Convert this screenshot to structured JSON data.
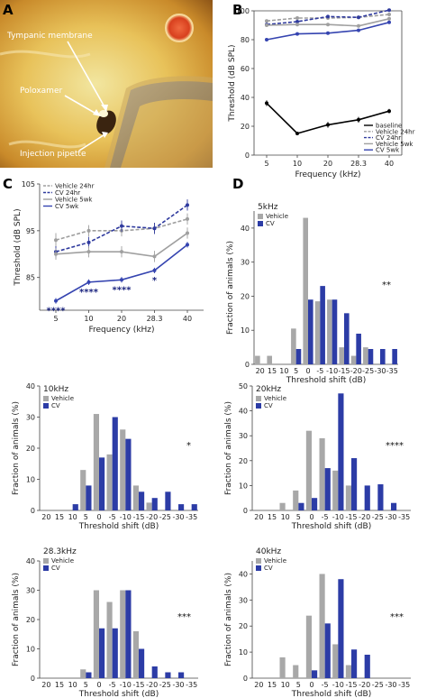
{
  "colors": {
    "baseline": "#000000",
    "vehicle24": "#9e9e9e",
    "cv24": "#2f3a9e",
    "vehicle5": "#a0a0a0",
    "cv5": "#3544b0",
    "vehicle_bar": "#a8a8a8",
    "cv_bar": "#2c3ca6"
  },
  "panel_a": {
    "letter": "A",
    "labels": [
      "Tympanic membrane",
      "Poloxamer",
      "Injection pipette"
    ]
  },
  "chart_data": [
    {
      "id": "B",
      "type": "line",
      "panel_letter": "B",
      "xlabel": "Frequency (kHz)",
      "ylabel": "Threshold (dB SPL)",
      "categories": [
        "5",
        "10",
        "20",
        "28.3",
        "40"
      ],
      "ylim": [
        0,
        100
      ],
      "yticks": [
        0,
        20,
        40,
        60,
        80,
        100
      ],
      "legend_position": "bottom-right",
      "series": [
        {
          "name": "baseline",
          "style": "solid",
          "color": "#000000",
          "values": [
            36,
            15,
            21,
            24.5,
            30.5
          ],
          "err": [
            2,
            1,
            2,
            2,
            1.5
          ]
        },
        {
          "name": "Vehicle 24hr",
          "style": "dashed",
          "color": "#9e9e9e",
          "values": [
            93,
            95,
            95,
            95.5,
            97.5
          ],
          "err": [
            1,
            1,
            1,
            1,
            1
          ]
        },
        {
          "name": "CV 24hr",
          "style": "dashed",
          "color": "#2f3a9e",
          "values": [
            90.5,
            92.5,
            96,
            95.5,
            100.5
          ],
          "err": [
            1,
            1,
            1,
            1,
            1
          ]
        },
        {
          "name": "Vehicle 5wk",
          "style": "solid",
          "color": "#a0a0a0",
          "values": [
            90,
            90.5,
            90.5,
            89.5,
            94.5
          ],
          "err": [
            1,
            1,
            1,
            1,
            1
          ]
        },
        {
          "name": "CV 5wk",
          "style": "solid",
          "color": "#3544b0",
          "values": [
            80,
            84,
            84.5,
            86.5,
            92
          ],
          "err": [
            0.5,
            0.5,
            0.5,
            0.5,
            0.5
          ]
        }
      ]
    },
    {
      "id": "C",
      "type": "line",
      "panel_letter": "C",
      "xlabel": "Frequency (kHz)",
      "ylabel": "Threshold (dB SPL)",
      "categories": [
        "5",
        "10",
        "20",
        "28.3",
        "40"
      ],
      "ylim": [
        78,
        105
      ],
      "yticks": [
        85,
        95,
        105
      ],
      "legend_position": "top-left",
      "significance": [
        "****",
        "****",
        "****",
        "*",
        ""
      ],
      "series": [
        {
          "name": "Vehicle 24hr",
          "style": "dashed",
          "color": "#9e9e9e",
          "values": [
            93,
            95,
            95,
            95.5,
            97.5
          ],
          "err": [
            1.5,
            1.2,
            1.2,
            1.2,
            1.2
          ]
        },
        {
          "name": "CV 24hr",
          "style": "dashed",
          "color": "#2f3a9e",
          "values": [
            90.5,
            92.5,
            96,
            95.5,
            100.5
          ],
          "err": [
            1.2,
            1.2,
            1.2,
            1.2,
            1.2
          ]
        },
        {
          "name": "Vehicle 5wk",
          "style": "solid",
          "color": "#a0a0a0",
          "values": [
            90,
            90.5,
            90.5,
            89.5,
            94.5
          ],
          "err": [
            1.2,
            1.2,
            1.2,
            1.2,
            1.2
          ]
        },
        {
          "name": "CV 5wk",
          "style": "solid",
          "color": "#3544b0",
          "values": [
            80,
            84,
            84.5,
            86.5,
            92
          ],
          "err": [
            0.6,
            0.6,
            0.6,
            0.6,
            0.6
          ]
        }
      ]
    },
    {
      "id": "D5",
      "type": "bar",
      "panel_letter": "D",
      "title": "5kHz",
      "xlabel": "Threshold shift (dB)",
      "ylabel": "Fraction of animals (%)",
      "categories": [
        "20",
        "15",
        "10",
        "5",
        "0",
        "-5",
        "-10",
        "-15",
        "-20",
        "-25",
        "-30",
        "-35"
      ],
      "ylim": [
        0,
        45
      ],
      "yticks": [
        0,
        10,
        20,
        30,
        40
      ],
      "significance": "**",
      "series": [
        {
          "name": "Vehicle",
          "values": [
            2.5,
            2.5,
            0,
            10.5,
            43,
            18.5,
            19,
            5,
            2.5,
            5,
            0,
            0
          ]
        },
        {
          "name": "CV",
          "values": [
            0,
            0,
            0,
            4.5,
            19,
            23,
            19,
            15,
            9,
            4.5,
            4.5,
            4.5
          ]
        }
      ]
    },
    {
      "id": "D10",
      "type": "bar",
      "title": "10kHz",
      "xlabel": "Threshold shift (dB)",
      "ylabel": "Fraction of animals (%)",
      "categories": [
        "20",
        "15",
        "10",
        "5",
        "0",
        "-5",
        "-10",
        "-15",
        "-20",
        "-25",
        "-30",
        "-35"
      ],
      "ylim": [
        0,
        40
      ],
      "yticks": [
        0,
        10,
        20,
        30,
        40
      ],
      "significance": "*",
      "series": [
        {
          "name": "Vehicle",
          "values": [
            0,
            0,
            0,
            13,
            31,
            18,
            26,
            8,
            2.5,
            0,
            0,
            0
          ]
        },
        {
          "name": "CV",
          "values": [
            0,
            0,
            2,
            8,
            17,
            30,
            23,
            6,
            4,
            6,
            2,
            2
          ]
        }
      ]
    },
    {
      "id": "D20",
      "type": "bar",
      "title": "20kHz",
      "xlabel": "Threshold shift (dB)",
      "ylabel": "Fraction of animals (%)",
      "categories": [
        "20",
        "15",
        "10",
        "5",
        "0",
        "-5",
        "-10",
        "-15",
        "-20",
        "-25",
        "-30",
        "-35"
      ],
      "ylim": [
        0,
        50
      ],
      "yticks": [
        0,
        10,
        20,
        30,
        40,
        50
      ],
      "significance": "****",
      "series": [
        {
          "name": "Vehicle",
          "values": [
            0,
            0,
            3,
            8,
            32,
            29,
            16,
            10,
            0,
            0,
            0,
            0
          ]
        },
        {
          "name": "CV",
          "values": [
            0,
            0,
            0,
            3,
            5,
            17,
            47,
            21,
            10,
            10.5,
            3,
            0
          ]
        }
      ]
    },
    {
      "id": "D28",
      "type": "bar",
      "title": "28.3kHz",
      "xlabel": "Threshold shift (dB)",
      "ylabel": "Fraction of animals (%)",
      "categories": [
        "20",
        "15",
        "10",
        "5",
        "0",
        "-5",
        "-10",
        "-15",
        "-20",
        "-25",
        "-30",
        "-35"
      ],
      "ylim": [
        0,
        40
      ],
      "yticks": [
        0,
        10,
        20,
        30,
        40
      ],
      "significance": "***",
      "series": [
        {
          "name": "Vehicle",
          "values": [
            0,
            0,
            0,
            3,
            30,
            26,
            30,
            16,
            0,
            0,
            0,
            0
          ]
        },
        {
          "name": "CV",
          "values": [
            0,
            0,
            0,
            2,
            17,
            17,
            30,
            10,
            4,
            2,
            2,
            0
          ]
        }
      ]
    },
    {
      "id": "D40",
      "type": "bar",
      "title": "40kHz",
      "xlabel": "Threshold shift (dB)",
      "ylabel": "Fraction of animals (%)",
      "categories": [
        "20",
        "15",
        "10",
        "5",
        "0",
        "-5",
        "-10",
        "-15",
        "-20",
        "-25",
        "-30",
        "-35"
      ],
      "ylim": [
        0,
        45
      ],
      "yticks": [
        0,
        10,
        20,
        30,
        40
      ],
      "significance": "***",
      "series": [
        {
          "name": "Vehicle",
          "values": [
            0,
            0,
            8,
            5,
            24,
            40,
            13,
            5,
            0,
            0,
            0,
            0
          ]
        },
        {
          "name": "CV",
          "values": [
            0,
            0,
            0,
            0,
            3,
            21,
            38,
            11,
            9,
            0,
            0,
            0
          ]
        }
      ]
    }
  ]
}
